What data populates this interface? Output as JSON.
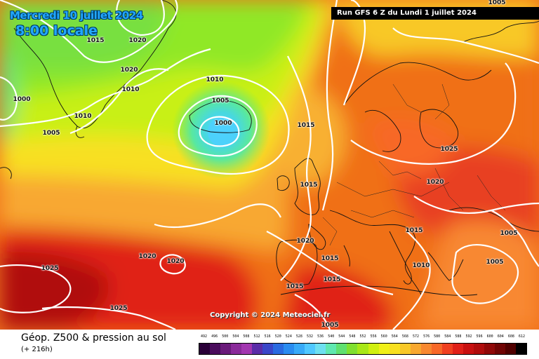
{
  "header": {
    "date": "Mercredi 10 juillet 2024",
    "time": "8:00 locale",
    "run": "Run GFS 6 Z du Lundi 1 juillet 2024"
  },
  "copyright": "Copyright © 2024 Meteociel.fr",
  "caption": {
    "title": "Géop. Z500 & pression au sol",
    "subtitle": "(+ 216h)"
  },
  "isobar_labels": [
    {
      "text": "1015"
    },
    {
      "text": "1020"
    },
    {
      "text": "1020"
    },
    {
      "text": "1010"
    },
    {
      "text": "1000"
    },
    {
      "text": "1010"
    },
    {
      "text": "1005"
    },
    {
      "text": "1010"
    },
    {
      "text": "1005"
    },
    {
      "text": "1000"
    },
    {
      "text": "1015"
    },
    {
      "text": "1025"
    },
    {
      "text": "1015"
    },
    {
      "text": "1020"
    },
    {
      "text": "1015"
    },
    {
      "text": "1005"
    },
    {
      "text": "1005"
    },
    {
      "text": "1020"
    },
    {
      "text": "1015"
    },
    {
      "text": "1010"
    },
    {
      "text": "1020"
    },
    {
      "text": "1020"
    },
    {
      "text": "1025"
    },
    {
      "text": "1025"
    },
    {
      "text": "1015"
    },
    {
      "text": "1015"
    },
    {
      "text": "1005"
    },
    {
      "text": "1005"
    }
  ],
  "scale": {
    "labels": [
      "492",
      "496",
      "500",
      "504",
      "508",
      "512",
      "516",
      "520",
      "524",
      "528",
      "532",
      "536",
      "540",
      "544",
      "548",
      "552",
      "556",
      "560",
      "564",
      "568",
      "572",
      "576",
      "580",
      "584",
      "588",
      "592",
      "596",
      "600",
      "604",
      "608",
      "612"
    ],
    "colors": [
      "#2a0038",
      "#4a0c5c",
      "#6a1a7a",
      "#8a2a9a",
      "#a236b0",
      "#5a2ca8",
      "#3a46c8",
      "#2a6ae0",
      "#2a8cf0",
      "#38aaf8",
      "#50c8ff",
      "#6ee0f0",
      "#60e8b0",
      "#60e070",
      "#80e030",
      "#a8e818",
      "#d0f010",
      "#f0f018",
      "#f8e020",
      "#f8c828",
      "#f8a830",
      "#f88830",
      "#f86828",
      "#f04020",
      "#e02018",
      "#c81010",
      "#b00c0c",
      "#900808",
      "#700404",
      "#500000",
      "#000000"
    ]
  }
}
